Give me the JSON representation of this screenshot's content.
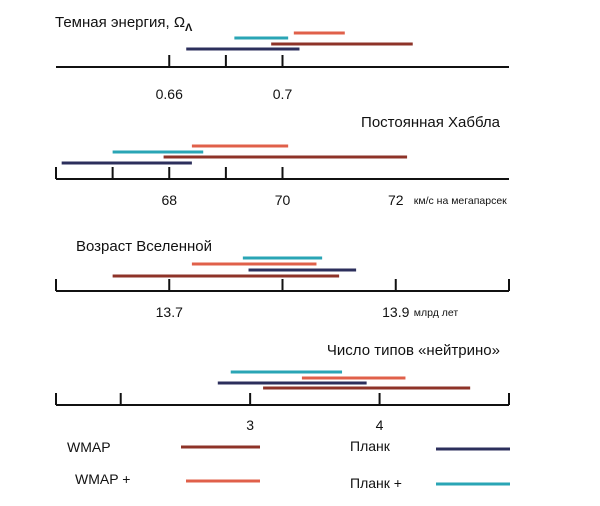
{
  "chart_data": [
    {
      "type": "range",
      "title": "Темная энергия, Ω",
      "title_sub": "Λ",
      "xlim": [
        0.62,
        0.78
      ],
      "ticks": [
        0.66,
        0.68,
        0.7
      ],
      "tick_labels": [
        {
          "value": 0.66,
          "label": "0.66"
        },
        {
          "value": 0.7,
          "label": "0.7"
        }
      ],
      "unit": "",
      "grid": false,
      "bars": [
        {
          "series": "WMAP +",
          "range": [
            0.704,
            0.722
          ]
        },
        {
          "series": "Планк +",
          "range": [
            0.683,
            0.702
          ]
        },
        {
          "series": "WMAP",
          "range": [
            0.696,
            0.746
          ]
        },
        {
          "series": "Планк",
          "range": [
            0.666,
            0.706
          ]
        }
      ]
    },
    {
      "type": "range",
      "title": "Постоянная Хаббла",
      "xlim": [
        66,
        74
      ],
      "ticks": [
        66,
        67,
        68,
        69,
        70
      ],
      "tick_labels": [
        {
          "value": 68,
          "label": "68"
        },
        {
          "value": 70,
          "label": "70"
        },
        {
          "value": 72,
          "label": "72"
        }
      ],
      "unit": "км/с на мегапарсек",
      "grid": false,
      "bars": [
        {
          "series": "WMAP +",
          "range": [
            68.4,
            70.1
          ]
        },
        {
          "series": "Планк +",
          "range": [
            67.0,
            68.6
          ]
        },
        {
          "series": "WMAP",
          "range": [
            67.9,
            72.2
          ]
        },
        {
          "series": "Планк",
          "range": [
            66.1,
            68.4
          ]
        }
      ]
    },
    {
      "type": "range",
      "title": "Возраст Вселенной",
      "xlim": [
        13.6,
        14.0
      ],
      "ticks": [
        13.6,
        13.7,
        13.8,
        13.9,
        14.0
      ],
      "tick_labels": [
        {
          "value": 13.7,
          "label": "13.7"
        },
        {
          "value": 13.9,
          "label": "13.9"
        }
      ],
      "unit": "млрд лет",
      "grid": false,
      "bars": [
        {
          "series": "Планк +",
          "range": [
            13.765,
            13.835
          ]
        },
        {
          "series": "WMAP +",
          "range": [
            13.72,
            13.83
          ]
        },
        {
          "series": "Планк",
          "range": [
            13.77,
            13.865
          ]
        },
        {
          "series": "WMAP",
          "range": [
            13.65,
            13.85
          ]
        }
      ]
    },
    {
      "type": "range",
      "title": "Число типов «нейтрино»",
      "xlim": [
        1.5,
        5.0
      ],
      "ticks": [
        1.5,
        2,
        3,
        4,
        5.0
      ],
      "tick_labels": [
        {
          "value": 3,
          "label": "3"
        },
        {
          "value": 4,
          "label": "4"
        }
      ],
      "unit": "",
      "grid": false,
      "bars": [
        {
          "series": "Планк +",
          "range": [
            2.85,
            3.71
          ]
        },
        {
          "series": "WMAP +",
          "range": [
            3.4,
            4.2
          ]
        },
        {
          "series": "Планк",
          "range": [
            2.75,
            3.9
          ]
        },
        {
          "series": "WMAP",
          "range": [
            3.1,
            4.7
          ]
        }
      ]
    }
  ],
  "legend": [
    {
      "name": "WMAP",
      "color": "#8e3328"
    },
    {
      "name": "WMAP +",
      "color": "#e0604a"
    },
    {
      "name": "Планк",
      "color": "#2c2f5c"
    },
    {
      "name": "Планк +",
      "color": "#2aa5b5"
    }
  ]
}
